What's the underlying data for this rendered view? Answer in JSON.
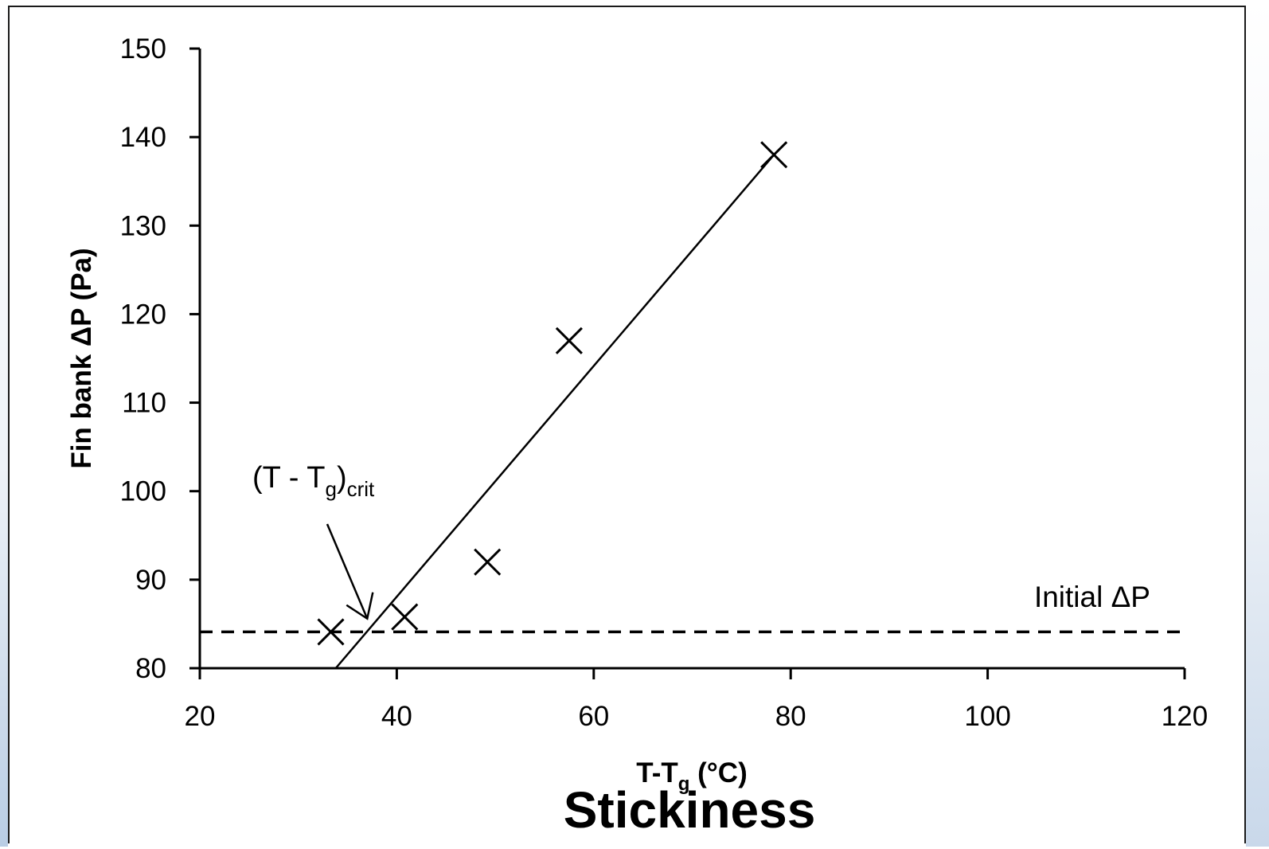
{
  "chart_data": {
    "type": "scatter",
    "title": "Stickiness",
    "xlabel": "T-T",
    "xlabel_sub": "g",
    "xlabel_suffix": " (°C)",
    "ylabel": "Fin bank ΔP (Pa)",
    "xlim": [
      20,
      120
    ],
    "ylim": [
      80,
      150
    ],
    "x_ticks": [
      20,
      40,
      60,
      80,
      100,
      120
    ],
    "y_ticks": [
      80,
      90,
      100,
      110,
      120,
      130,
      140,
      150
    ],
    "grid": false,
    "series": [
      {
        "marker": "x",
        "points": [
          {
            "x": 33.3,
            "y": 84.1
          },
          {
            "x": 40.8,
            "y": 85.8
          },
          {
            "x": 49.2,
            "y": 92.0
          },
          {
            "x": 57.5,
            "y": 117.0
          },
          {
            "x": 78.3,
            "y": 138.0
          }
        ]
      }
    ],
    "fit_line": {
      "x": [
        33.8,
        78.3
      ],
      "y": [
        80.0,
        138.0
      ]
    },
    "reference_line": {
      "y": 84.1,
      "label": "Initial ΔP",
      "style": "dashed"
    },
    "annotation": {
      "text_main": "(T - T",
      "text_sub": "g",
      "text_close": ")",
      "text_sub2": "crit",
      "arrow_tip": {
        "x": 37.0,
        "y": 85.6
      }
    }
  }
}
